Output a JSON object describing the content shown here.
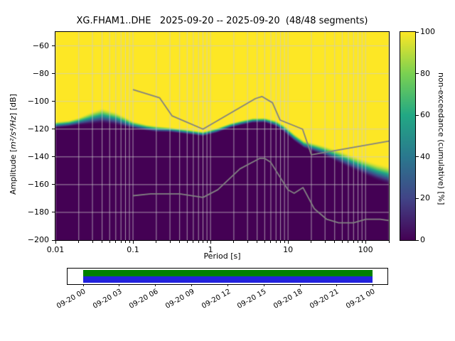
{
  "title": "XG.FHAM1..DHE   2025-09-20 -- 2025-09-20  (48/48 segments)",
  "station_id": "XG.FHAM1..DHE",
  "date_range": "2025-09-20 -- 2025-09-20",
  "segments_used": "48/48 segments",
  "axes": {
    "x": {
      "label": "Period [s]",
      "scale": "log",
      "min": 0.01,
      "max": 200,
      "tick_values": [
        0.01,
        0.1,
        1,
        10,
        100
      ],
      "tick_labels": [
        "0.01",
        "0.1",
        "1",
        "10",
        "100"
      ]
    },
    "y": {
      "label": "Amplitude [m²/s⁴/Hz] [dB]",
      "label_parts": [
        "Amplitude [",
        "m²/s⁴/Hz",
        "] [dB]"
      ],
      "min": -200,
      "max": -50,
      "tick_values": [
        -200,
        -180,
        -160,
        -140,
        -120,
        -100,
        -80,
        -60
      ],
      "tick_labels": [
        "−200",
        "−180",
        "−160",
        "−140",
        "−120",
        "−100",
        "−80",
        "−60"
      ]
    },
    "colorbar": {
      "label": "non-exceedance (cumulative) [%]",
      "min": 0,
      "max": 100,
      "tick_values": [
        0,
        20,
        40,
        60,
        80,
        100
      ],
      "tick_labels": [
        "0",
        "20",
        "40",
        "60",
        "80",
        "100"
      ]
    }
  },
  "chart_data": {
    "type": "heatmap",
    "title": "XG.FHAM1..DHE   2025-09-20 -- 2025-09-20  (48/48 segments)",
    "xlabel": "Period [s]",
    "ylabel": "Amplitude [m²/s⁴/Hz] [dB]",
    "xscale": "log",
    "xlim": [
      0.01,
      200
    ],
    "ylim": [
      -200,
      -50
    ],
    "colorbar_label": "non-exceedance (cumulative) [%]",
    "colorbar_range": [
      0,
      100
    ],
    "grid": true,
    "cumulative_median_db": {
      "comment": "Top edge of the 0% (dark) region / center of the cumulative transition band, read from the plot",
      "periods": [
        0.01,
        0.015,
        0.02,
        0.03,
        0.04,
        0.06,
        0.08,
        0.1,
        0.15,
        0.2,
        0.3,
        0.5,
        0.8,
        1.2,
        1.8,
        2.5,
        3.5,
        5,
        7,
        9,
        12,
        16,
        22,
        30,
        45,
        70,
        100,
        140,
        200
      ],
      "db": [
        -117,
        -116,
        -114.5,
        -112,
        -110.5,
        -112.5,
        -115,
        -117,
        -119,
        -120,
        -120.5,
        -122,
        -123.5,
        -121,
        -117.5,
        -115.5,
        -113.8,
        -113.6,
        -116,
        -120,
        -126,
        -131,
        -133.5,
        -136,
        -140,
        -144.5,
        -148,
        -151,
        -153.5
      ],
      "spread_db": [
        2.5,
        2.5,
        3,
        5,
        6,
        5,
        4,
        3,
        2.5,
        2.5,
        2,
        2,
        2,
        2,
        2,
        2,
        2,
        2,
        2.5,
        3,
        3,
        3,
        3.5,
        4,
        5,
        5.5,
        6,
        6.5,
        7
      ]
    },
    "noise_models": {
      "name": "Peterson (1993) NHNM / NLNM reference curves (gray lines)",
      "nhnm": [
        [
          0.1,
          -91.5
        ],
        [
          0.22,
          -97.4
        ],
        [
          0.32,
          -110.5
        ],
        [
          0.8,
          -120.0
        ],
        [
          3.8,
          -98.0
        ],
        [
          4.6,
          -96.5
        ],
        [
          6.3,
          -101.0
        ],
        [
          7.9,
          -113.5
        ],
        [
          15.4,
          -120.0
        ],
        [
          20.0,
          -138.5
        ],
        [
          200.0,
          -128.6
        ]
      ],
      "nlnm": [
        [
          0.1,
          -168.0
        ],
        [
          0.17,
          -166.7
        ],
        [
          0.4,
          -166.7
        ],
        [
          0.8,
          -169.2
        ],
        [
          1.24,
          -163.7
        ],
        [
          2.4,
          -148.6
        ],
        [
          4.3,
          -141.1
        ],
        [
          5.0,
          -141.1
        ],
        [
          6.0,
          -144.0
        ],
        [
          10.0,
          -163.8
        ],
        [
          12.0,
          -166.2
        ],
        [
          15.6,
          -162.1
        ],
        [
          21.9,
          -177.5
        ],
        [
          31.6,
          -185.0
        ],
        [
          45.0,
          -187.5
        ],
        [
          70.0,
          -187.5
        ],
        [
          101.0,
          -185.0
        ],
        [
          154.0,
          -185.0
        ],
        [
          200.0,
          -185.9
        ]
      ]
    },
    "colormap": {
      "name": "viridis",
      "stops": [
        [
          0,
          "#440154"
        ],
        [
          0.2,
          "#414487"
        ],
        [
          0.4,
          "#2a788e"
        ],
        [
          0.6,
          "#22a884"
        ],
        [
          0.8,
          "#7ad151"
        ],
        [
          1,
          "#fde725"
        ]
      ]
    },
    "grid_color": "#cbcbcb",
    "noise_model_color": "#828282"
  },
  "timeline": {
    "tick_labels": [
      "09-20 00",
      "09-20 03",
      "09-20 06",
      "09-20 09",
      "09-20 12",
      "09-20 15",
      "09-20 18",
      "09-20 21",
      "09-21 00"
    ],
    "coverage_color_top": "#008000",
    "coverage_color_bottom": "#2222dd"
  }
}
